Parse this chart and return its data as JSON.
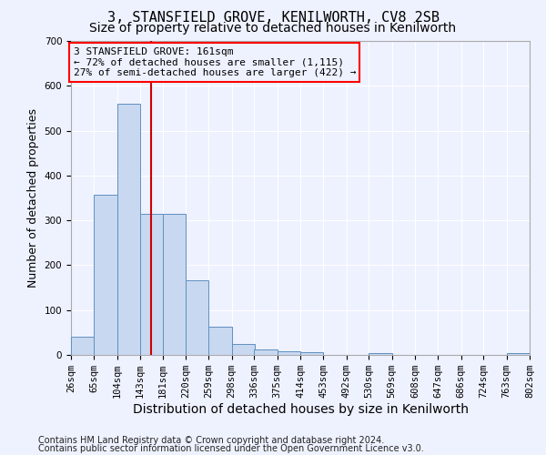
{
  "title": "3, STANSFIELD GROVE, KENILWORTH, CV8 2SB",
  "subtitle": "Size of property relative to detached houses in Kenilworth",
  "xlabel": "Distribution of detached houses by size in Kenilworth",
  "ylabel": "Number of detached properties",
  "footer_line1": "Contains HM Land Registry data © Crown copyright and database right 2024.",
  "footer_line2": "Contains public sector information licensed under the Open Government Licence v3.0.",
  "annotation_line1": "3 STANSFIELD GROVE: 161sqm",
  "annotation_line2": "← 72% of detached houses are smaller (1,115)",
  "annotation_line3": "27% of semi-detached houses are larger (422) →",
  "bar_color": "#c8d8f0",
  "bar_edge_color": "#6090c0",
  "red_line_x": 161,
  "bins": [
    26,
    65,
    104,
    143,
    181,
    220,
    259,
    298,
    336,
    375,
    414,
    453,
    492,
    530,
    569,
    608,
    647,
    686,
    724,
    763,
    802
  ],
  "bar_heights": [
    40,
    357,
    560,
    315,
    315,
    167,
    62,
    25,
    12,
    9,
    7,
    0,
    0,
    5,
    0,
    0,
    0,
    0,
    0,
    5
  ],
  "ylim": [
    0,
    700
  ],
  "yticks": [
    0,
    100,
    200,
    300,
    400,
    500,
    600,
    700
  ],
  "bg_color": "#eef2ff",
  "grid_color": "#ffffff",
  "title_fontsize": 11,
  "subtitle_fontsize": 10,
  "ylabel_fontsize": 9,
  "xlabel_fontsize": 10,
  "tick_fontsize": 7.5,
  "footer_fontsize": 7,
  "ann_fontsize": 8
}
